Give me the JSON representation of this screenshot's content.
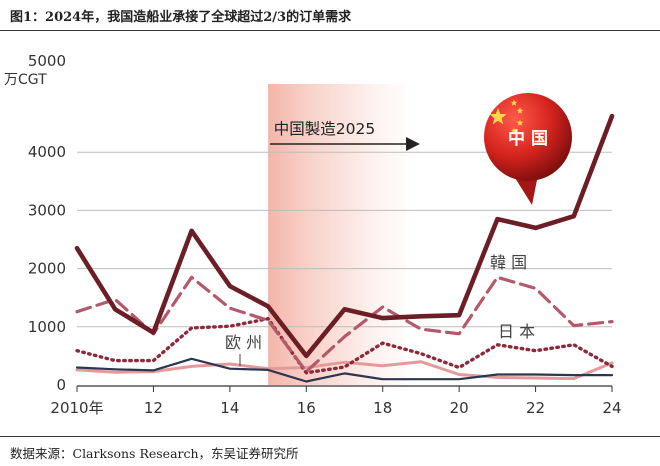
{
  "figure": {
    "title": "图1：2024年，我国造船业承接了全球超过2/3的订单需求",
    "source": "数据来源：Clarksons Research，东吴证券研究所"
  },
  "chart_data": {
    "type": "line",
    "ylabel": "5000\n万CGT",
    "ylim": [
      0,
      5000
    ],
    "yticks": [
      0,
      1000,
      2000,
      3000,
      4000
    ],
    "xlim": [
      2010,
      2024
    ],
    "xticks": [
      2010,
      2012,
      2014,
      2016,
      2018,
      2020,
      2022,
      2024
    ],
    "xtick_labels": [
      "2010年",
      "12",
      "14",
      "16",
      "18",
      "20",
      "22",
      "24"
    ],
    "grid": "horizontal",
    "x": [
      2010,
      2011,
      2012,
      2013,
      2014,
      2015,
      2016,
      2017,
      2018,
      2019,
      2020,
      2021,
      2022,
      2023,
      2024
    ],
    "series": [
      {
        "name": "中国",
        "color": "#6b1e26",
        "style": "solid",
        "values": [
          2350,
          1300,
          900,
          2650,
          1700,
          1350,
          500,
          1300,
          1150,
          1180,
          1200,
          2850,
          2700,
          2900,
          4620
        ]
      },
      {
        "name": "韓国",
        "color": "#b35a6a",
        "style": "dashed",
        "values": [
          1260,
          1470,
          880,
          1850,
          1320,
          1110,
          230,
          830,
          1340,
          960,
          880,
          1850,
          1660,
          1020,
          1090
        ]
      },
      {
        "name": "日本",
        "color": "#8a2a3a",
        "style": "dotted",
        "values": [
          590,
          420,
          420,
          980,
          1010,
          1140,
          210,
          310,
          720,
          540,
          300,
          690,
          590,
          690,
          320
        ]
      },
      {
        "name": "欧州",
        "color": "#2e3550",
        "style": "solid",
        "values": [
          300,
          270,
          250,
          450,
          280,
          260,
          60,
          200,
          100,
          100,
          100,
          180,
          180,
          170,
          170
        ]
      },
      {
        "name": "",
        "color": "#e39a9a",
        "style": "solid",
        "values": [
          260,
          220,
          230,
          320,
          360,
          280,
          300,
          390,
          330,
          400,
          180,
          130,
          120,
          110,
          380
        ]
      }
    ],
    "annotations": [
      {
        "text": "中国製造2025",
        "x_start": 2015,
        "x_end": 2018.6,
        "shaded": true,
        "arrow": true
      },
      {
        "text": "中 国",
        "type": "flag-bubble"
      }
    ]
  }
}
